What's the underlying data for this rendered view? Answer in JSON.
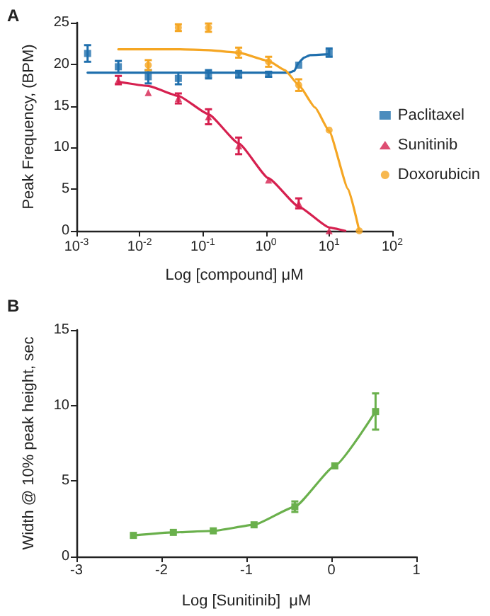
{
  "chart_data": [
    {
      "type": "scatter",
      "title": "A",
      "xlabel": "Log [compound] μM",
      "ylabel": "Peak Frequency, (BPM)",
      "log": "x",
      "legend": "right",
      "grid": false,
      "xlim": [
        0.001,
        100
      ],
      "xticks": [
        {
          "value": 0.001,
          "label": "10$^{-3}$"
        },
        {
          "value": 0.01,
          "label": "10$^{-2}$"
        },
        {
          "value": 0.1,
          "label": "10$^{-1}$"
        },
        {
          "value": 1,
          "label": "10$^{0}$"
        },
        {
          "value": 10,
          "label": "10$^{1}$"
        },
        {
          "value": 100,
          "label": "10$^{2}$"
        }
      ],
      "ylim": [
        0,
        25
      ],
      "yticks": [
        0,
        5,
        10,
        15,
        20,
        25
      ],
      "series": [
        {
          "name": "Paclitaxel",
          "color": "#1f6fad",
          "marker": "square",
          "x": [
            0.0015,
            0.0046,
            0.0137,
            0.041,
            0.123,
            0.37,
            1.1,
            3.3,
            10
          ],
          "values": [
            21.3,
            19.7,
            18.5,
            18.3,
            18.8,
            18.8,
            18.8,
            19.9,
            21.4
          ],
          "errors": [
            1.0,
            0.7,
            0.8,
            0.7,
            0.5,
            0.4,
            0.3,
            null,
            0.5
          ]
        },
        {
          "name": "Sunitinib",
          "color": "#d6204f",
          "marker": "triangle",
          "x": [
            0.0046,
            0.0137,
            0.041,
            0.123,
            0.37,
            1.1,
            3.3,
            10
          ],
          "values": [
            18.1,
            16.6,
            15.9,
            13.7,
            10.2,
            6.1,
            3.3,
            0
          ],
          "errors": [
            0.5,
            null,
            0.6,
            0.9,
            1.0,
            null,
            0.6,
            null
          ]
        },
        {
          "name": "Doxorubicin",
          "color": "#f5a623",
          "marker": "circle",
          "x": [
            0.0137,
            0.041,
            0.123,
            0.37,
            1.1,
            3.3,
            10,
            30
          ],
          "values": [
            19.9,
            24.4,
            24.4,
            21.4,
            20.3,
            17.5,
            12.1,
            0
          ],
          "errors": [
            0.6,
            0.4,
            0.5,
            0.6,
            0.6,
            0.7,
            null,
            null
          ]
        },
        {
          "type": "line",
          "color": "#1f6fad",
          "marker": "none",
          "x": [
            0.0015,
            0.1,
            1,
            2.3,
            2.8,
            3.3,
            4,
            5,
            10
          ],
          "values": [
            19.0,
            19.0,
            19.0,
            19.0,
            19.2,
            20.2,
            20.8,
            21.1,
            21.2
          ]
        },
        {
          "type": "line",
          "color": "#d6204f",
          "marker": "none",
          "x": [
            0.0046,
            0.0137,
            0.041,
            0.123,
            0.37,
            1.1,
            3.3,
            10,
            18
          ],
          "values": [
            17.9,
            17.4,
            16.2,
            14.0,
            10.5,
            6.3,
            2.9,
            0.4,
            0
          ]
        },
        {
          "type": "line",
          "color": "#f5a623",
          "marker": "none",
          "x": [
            0.0046,
            0.041,
            0.123,
            0.37,
            1.1,
            2,
            3.3,
            6,
            10,
            20,
            30
          ],
          "values": [
            21.8,
            21.8,
            21.7,
            21.4,
            20.4,
            19.3,
            17.5,
            14.8,
            12.0,
            5.0,
            0
          ]
        }
      ]
    },
    {
      "type": "line",
      "title": "B",
      "xlabel": "Log [Sunitinib]  μM",
      "ylabel": "Width @ 10% peak height, sec",
      "grid": false,
      "legend": false,
      "xlim": [
        -3,
        1
      ],
      "xticks": [
        -3,
        -2,
        -1,
        0,
        1
      ],
      "ylim": [
        0,
        15
      ],
      "yticks": [
        0,
        5,
        10,
        15
      ],
      "series": [
        {
          "color": "#6ab04c",
          "marker": "square",
          "x": [
            -2.33,
            -1.86,
            -1.39,
            -0.91,
            -0.43,
            0.04,
            0.52
          ],
          "values": [
            1.4,
            1.6,
            1.7,
            2.1,
            3.3,
            6.0,
            9.6
          ],
          "errors": [
            null,
            null,
            null,
            null,
            0.35,
            null,
            1.2
          ]
        }
      ]
    }
  ]
}
